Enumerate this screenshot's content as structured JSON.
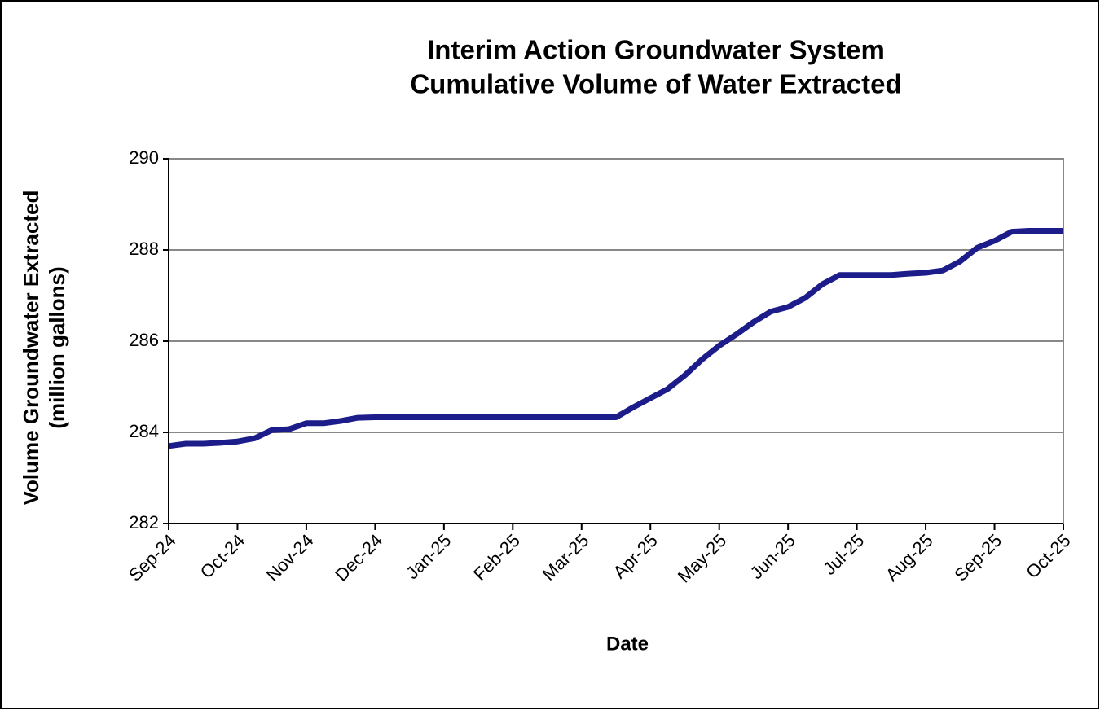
{
  "chart_data": {
    "type": "line",
    "title": [
      "Interim Action Groundwater System",
      "Cumulative Volume of Water Extracted"
    ],
    "x_label": "Date",
    "y_label": [
      "Volume Groundwater Extracted",
      "(million gallons)"
    ],
    "categories": [
      "Sep-24",
      null,
      null,
      null,
      "Oct-24",
      null,
      null,
      null,
      "Nov-24",
      null,
      null,
      null,
      "Dec-24",
      null,
      null,
      null,
      "Jan-25",
      null,
      null,
      null,
      "Feb-25",
      null,
      null,
      null,
      "Mar-25",
      null,
      null,
      null,
      "Apr-25",
      null,
      null,
      null,
      "May-25",
      null,
      null,
      null,
      "Jun-25",
      null,
      null,
      null,
      "Jul-25",
      null,
      null,
      null,
      "Aug-25",
      null,
      null,
      null,
      "Sep-25",
      null,
      null,
      null,
      "Oct-25"
    ],
    "values": [
      283.7,
      283.75,
      283.75,
      283.77,
      283.8,
      283.87,
      284.05,
      284.07,
      284.2,
      284.2,
      284.25,
      284.32,
      284.33,
      284.33,
      284.33,
      284.33,
      284.33,
      284.33,
      284.33,
      284.33,
      284.33,
      284.33,
      284.33,
      284.33,
      284.33,
      284.33,
      284.33,
      284.55,
      284.75,
      284.95,
      285.25,
      285.6,
      285.9,
      286.15,
      286.42,
      286.65,
      286.75,
      286.95,
      287.25,
      287.45,
      287.45,
      287.45,
      287.45,
      287.48,
      287.5,
      287.55,
      287.75,
      288.05,
      288.2,
      288.4,
      288.42,
      288.42,
      288.42
    ],
    "color": "#1c1c8a",
    "ylim": [
      282,
      290
    ],
    "yticks": [
      282,
      284,
      286,
      288,
      290
    ],
    "grid": true
  }
}
